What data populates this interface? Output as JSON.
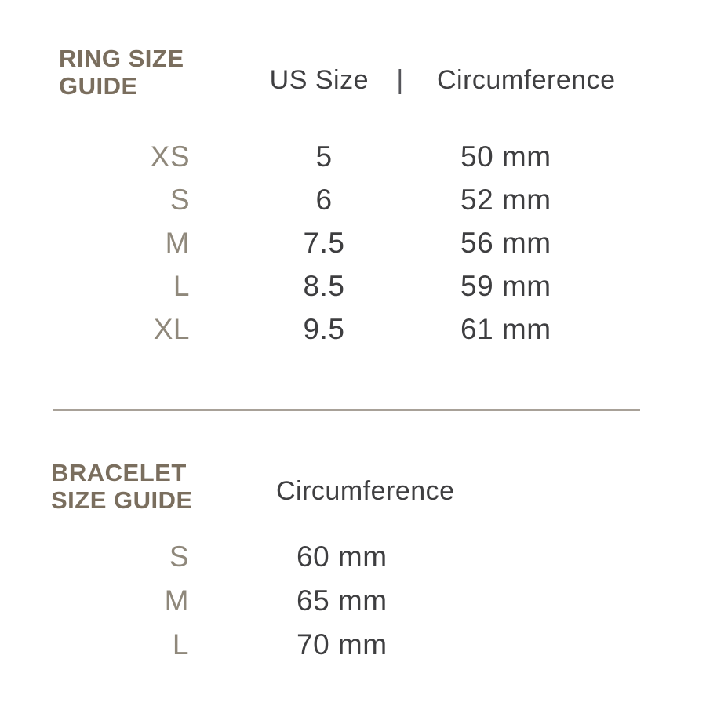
{
  "colors": {
    "background": "#ffffff",
    "title_brown": "#7a6e5e",
    "size_label_taupe": "#8f887b",
    "text_dark": "#3e3e40",
    "divider_gray": "#a8a198"
  },
  "ring_guide": {
    "title_line1": "RING SIZE",
    "title_line2": "GUIDE",
    "header": {
      "us_size_label": "US Size",
      "separator": "|",
      "circumference_label": "Circumference"
    },
    "rows": [
      {
        "size": "XS",
        "us_size": "5",
        "circumference": "50 mm"
      },
      {
        "size": "S",
        "us_size": "6",
        "circumference": "52 mm"
      },
      {
        "size": "M",
        "us_size": "7.5",
        "circumference": "56 mm"
      },
      {
        "size": "L",
        "us_size": "8.5",
        "circumference": "59 mm"
      },
      {
        "size": "XL",
        "us_size": "9.5",
        "circumference": "61 mm"
      }
    ]
  },
  "bracelet_guide": {
    "title_line1": "BRACELET",
    "title_line2": "SIZE GUIDE",
    "header": {
      "circumference_label": "Circumference"
    },
    "rows": [
      {
        "size": "S",
        "circumference": "60 mm"
      },
      {
        "size": "M",
        "circumference": "65 mm"
      },
      {
        "size": "L",
        "circumference": "70 mm"
      }
    ]
  }
}
